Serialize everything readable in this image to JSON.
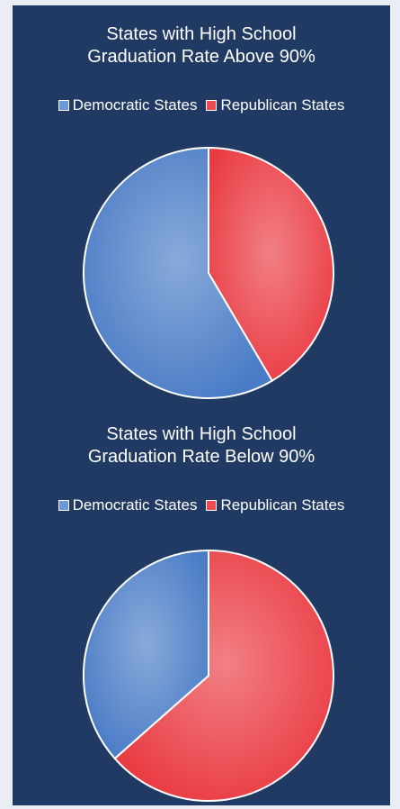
{
  "colors": {
    "background": "#213a63",
    "democratic": "#4a7cc6",
    "republican": "#ea3b43"
  },
  "chart_data": [
    {
      "type": "pie",
      "title_lines": [
        "States with High School",
        "Graduation Rate Above 90%"
      ],
      "legend_position": "top",
      "slices": [
        {
          "label": "Democratic States",
          "value": 58.5,
          "color": "#4a7cc6"
        },
        {
          "label": "Republican States",
          "value": 41.5,
          "color": "#ea3b43"
        }
      ]
    },
    {
      "type": "pie",
      "title_lines": [
        "States with High School",
        "Graduation Rate Below 90%"
      ],
      "legend_position": "top",
      "slices": [
        {
          "label": "Democratic States",
          "value": 36.5,
          "color": "#4a7cc6"
        },
        {
          "label": "Republican States",
          "value": 63.5,
          "color": "#ea3b43"
        }
      ]
    }
  ]
}
